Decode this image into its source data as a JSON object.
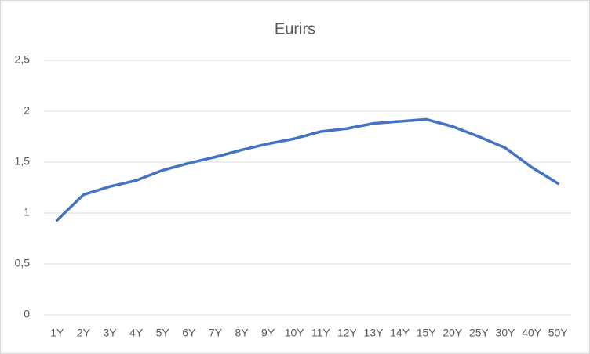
{
  "chart_data": {
    "type": "line",
    "title": "Eurirs",
    "categories": [
      "1Y",
      "2Y",
      "3Y",
      "4Y",
      "5Y",
      "6Y",
      "7Y",
      "8Y",
      "9Y",
      "10Y",
      "11Y",
      "12Y",
      "13Y",
      "14Y",
      "15Y",
      "20Y",
      "25Y",
      "30Y",
      "40Y",
      "50Y"
    ],
    "series": [
      {
        "color": "#4472c4",
        "values": [
          0.93,
          1.18,
          1.26,
          1.32,
          1.42,
          1.49,
          1.55,
          1.62,
          1.68,
          1.73,
          1.8,
          1.83,
          1.88,
          1.9,
          1.92,
          1.85,
          1.75,
          1.64,
          1.45,
          1.29
        ]
      }
    ],
    "ylim": [
      0,
      2.5
    ],
    "yticks": [
      0,
      {
        "value": 0.5,
        "label": "0,5"
      },
      1,
      {
        "value": 1.5,
        "label": "1,5"
      },
      2,
      {
        "value": 2.5,
        "label": "2,5"
      }
    ],
    "grid": true
  }
}
